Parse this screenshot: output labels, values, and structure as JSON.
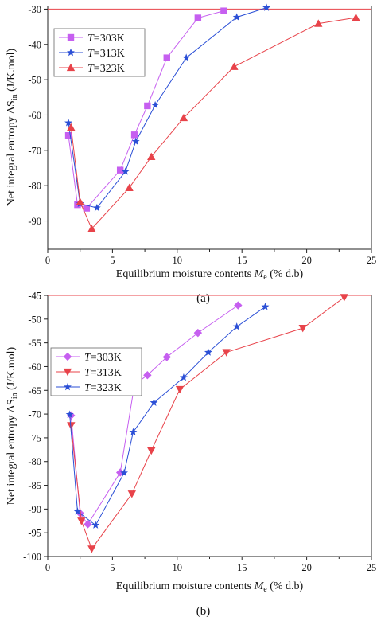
{
  "chart_data": [
    {
      "type": "line",
      "caption": "(a)",
      "xlabel_main": "Equilibrium moisture contents ",
      "xlabel_symbol": "M",
      "xlabel_sub": "e",
      "xlabel_unit": " (% d.b)",
      "ylabel_main": "Net integral entropy ΔS",
      "ylabel_sub": "in",
      "ylabel_unit": " (J/K.mol)",
      "xlim": [
        0,
        25
      ],
      "ylim": [
        -98,
        -29
      ],
      "xticks": [
        0,
        5,
        10,
        15,
        20,
        25
      ],
      "yticks": [
        -90,
        -80,
        -70,
        -60,
        -50,
        -40,
        -30
      ],
      "ref_line_y": -30,
      "grid": false,
      "legend_position": "upper-left",
      "legend_var": "T",
      "series": [
        {
          "name": "=303K",
          "color": "#c65ff0",
          "marker": "square",
          "x": [
            1.6,
            2.3,
            3.0,
            5.6,
            6.7,
            7.7,
            9.2,
            11.6,
            13.6
          ],
          "y": [
            -65.8,
            -85.4,
            -86.4,
            -75.6,
            -65.6,
            -57.4,
            -43.8,
            -32.5,
            -30.5
          ]
        },
        {
          "name": "=313K",
          "color": "#2b4fd6",
          "marker": "star",
          "x": [
            1.6,
            2.5,
            3.8,
            6.0,
            6.8,
            8.3,
            10.7,
            14.6,
            16.9
          ],
          "y": [
            -62.2,
            -85.1,
            -86.3,
            -76.0,
            -67.5,
            -57.2,
            -43.8,
            -32.3,
            -29.6
          ]
        },
        {
          "name": "=323K",
          "color": "#e8434a",
          "marker": "triangle-up",
          "x": [
            1.8,
            2.5,
            3.4,
            6.3,
            8.0,
            10.5,
            14.4,
            20.9,
            23.8
          ],
          "y": [
            -63.5,
            -84.6,
            -92.2,
            -80.6,
            -71.8,
            -60.8,
            -46.3,
            -34.1,
            -32.4
          ]
        }
      ]
    },
    {
      "type": "line",
      "caption": "(b)",
      "xlabel_main": "Equilibrium moisture contents ",
      "xlabel_symbol": "M",
      "xlabel_sub": "e",
      "xlabel_unit": " (% d.b)",
      "ylabel_main": "Net integral entropy ΔS",
      "ylabel_sub": "in",
      "ylabel_unit": " (J/K.mol)",
      "xlim": [
        0,
        25
      ],
      "ylim": [
        -100,
        -45
      ],
      "xticks": [
        0,
        5,
        10,
        15,
        20,
        25
      ],
      "yticks": [
        -100,
        -95,
        -90,
        -85,
        -80,
        -75,
        -70,
        -65,
        -60,
        -55,
        -50,
        -45
      ],
      "ref_line_y": -45,
      "grid": false,
      "legend_position": "upper-left",
      "legend_var": "T",
      "series": [
        {
          "name": "=303K",
          "color": "#c65ff0",
          "marker": "diamond",
          "x": [
            1.8,
            2.5,
            3.1,
            5.6,
            6.7,
            7.7,
            9.2,
            11.6,
            14.7
          ],
          "y": [
            -70.3,
            -90.9,
            -93.2,
            -82.3,
            -63.8,
            -61.8,
            -58.0,
            -52.9,
            -47.1
          ]
        },
        {
          "name": "=313K",
          "color": "#e8434a",
          "marker": "triangle-down",
          "x": [
            1.8,
            2.6,
            3.4,
            6.5,
            8.0,
            10.2,
            13.8,
            19.7,
            22.9
          ],
          "y": [
            -72.4,
            -92.5,
            -98.4,
            -86.8,
            -77.7,
            -64.8,
            -57.0,
            -51.9,
            -45.4
          ]
        },
        {
          "name": "=323K",
          "color": "#2b4fd6",
          "marker": "star",
          "x": [
            1.7,
            2.3,
            3.7,
            5.9,
            6.6,
            8.2,
            10.5,
            12.4,
            14.6,
            16.8
          ],
          "y": [
            -70.1,
            -90.5,
            -93.4,
            -82.4,
            -73.8,
            -67.6,
            -62.3,
            -57.0,
            -51.6,
            -47.4
          ]
        }
      ]
    }
  ]
}
